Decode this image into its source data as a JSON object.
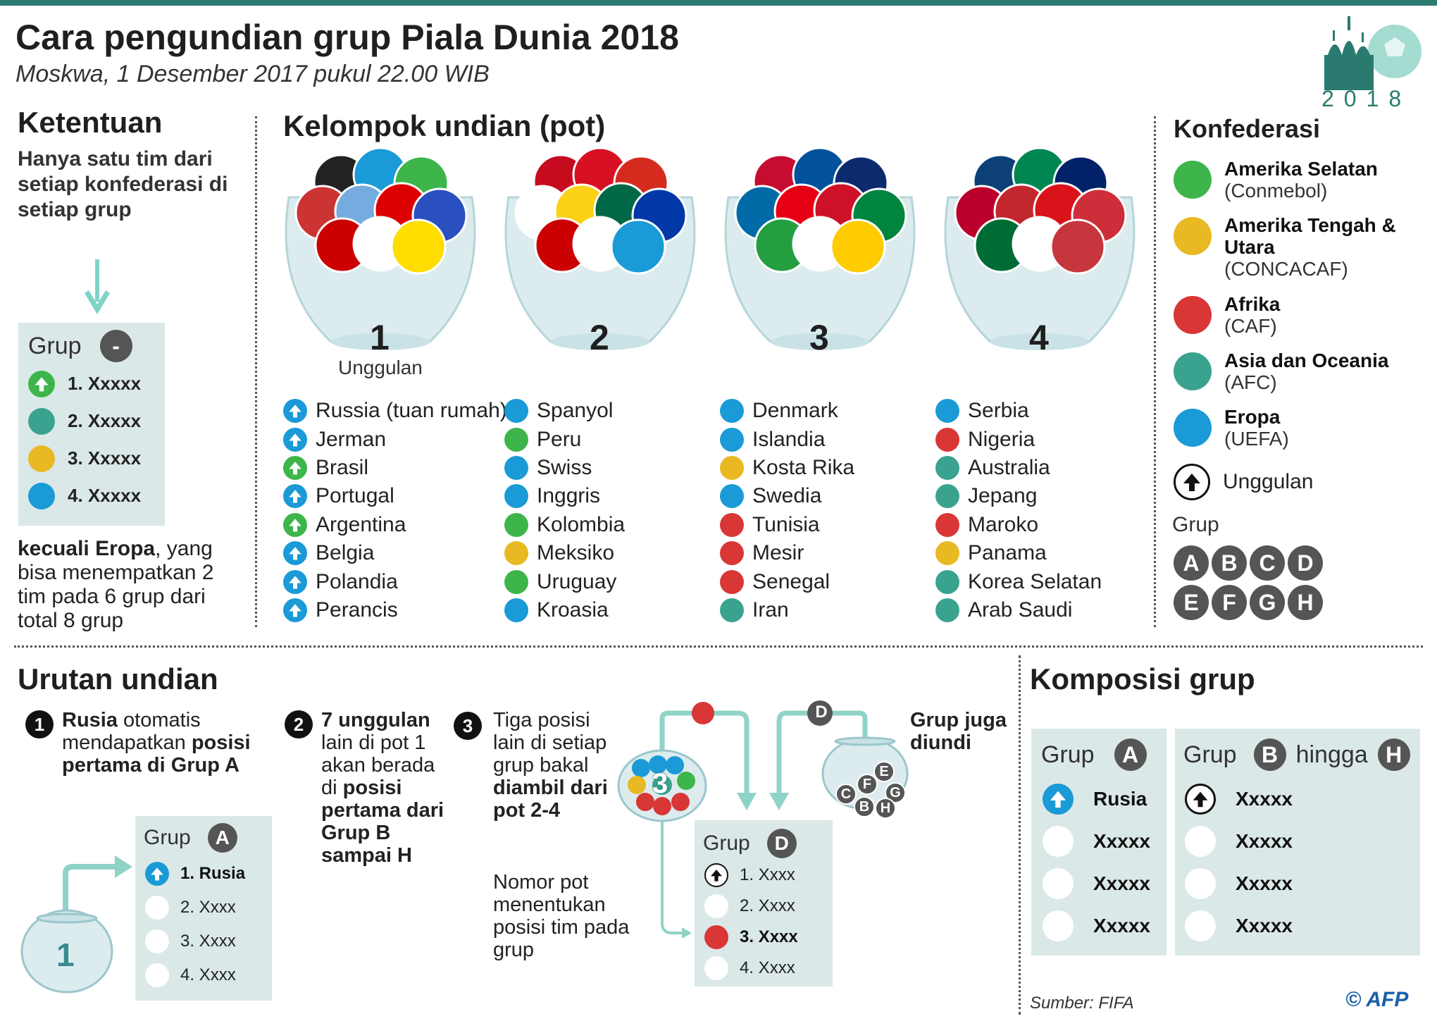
{
  "header": {
    "title": "Cara pengundian grup Piala Dunia 2018",
    "subtitle": "Moskwa, 1 Desember 2017 pukul 22.00 WIB",
    "logo_year": "2018"
  },
  "colors": {
    "south_america": "#3db54a",
    "concacaf": "#e8b923",
    "africa": "#d93636",
    "asia": "#3aa38f",
    "europe": "#1a9ad6",
    "accent": "#2a7a70",
    "panel": "#dbe8e8"
  },
  "ketentuan": {
    "title": "Ketentuan",
    "text": "Hanya satu tim dari setiap konfederasi di setiap grup",
    "group_label": "Grup",
    "group_letter": "-",
    "items": [
      "1. Xxxxx",
      "2. Xxxxx",
      "3. Xxxxx",
      "4. Xxxxx"
    ],
    "except_bold": "kecuali Eropa",
    "except_rest": ", yang bisa menempatkan 2 tim pada 6 grup dari total 8 grup"
  },
  "pots": {
    "title": "Kelompok undian (pot)",
    "seed_label": "Unggulan",
    "list": [
      {
        "number": "1",
        "teams": [
          {
            "name": "Russia (tuan rumah)",
            "conf": "europe",
            "seed": true
          },
          {
            "name": "Jerman",
            "conf": "europe",
            "seed": true
          },
          {
            "name": "Brasil",
            "conf": "south_america",
            "seed": true
          },
          {
            "name": "Portugal",
            "conf": "europe",
            "seed": true
          },
          {
            "name": "Argentina",
            "conf": "south_america",
            "seed": true
          },
          {
            "name": "Belgia",
            "conf": "europe",
            "seed": true
          },
          {
            "name": "Polandia",
            "conf": "europe",
            "seed": true
          },
          {
            "name": "Perancis",
            "conf": "europe",
            "seed": true
          }
        ]
      },
      {
        "number": "2",
        "teams": [
          {
            "name": "Spanyol",
            "conf": "europe"
          },
          {
            "name": "Peru",
            "conf": "south_america"
          },
          {
            "name": "Swiss",
            "conf": "europe"
          },
          {
            "name": "Inggris",
            "conf": "europe"
          },
          {
            "name": "Kolombia",
            "conf": "south_america"
          },
          {
            "name": "Meksiko",
            "conf": "concacaf"
          },
          {
            "name": "Uruguay",
            "conf": "south_america"
          },
          {
            "name": "Kroasia",
            "conf": "europe"
          }
        ]
      },
      {
        "number": "3",
        "teams": [
          {
            "name": "Denmark",
            "conf": "europe"
          },
          {
            "name": "Islandia",
            "conf": "europe"
          },
          {
            "name": "Kosta Rika",
            "conf": "concacaf"
          },
          {
            "name": "Swedia",
            "conf": "europe"
          },
          {
            "name": "Tunisia",
            "conf": "africa"
          },
          {
            "name": "Mesir",
            "conf": "africa"
          },
          {
            "name": "Senegal",
            "conf": "africa"
          },
          {
            "name": "Iran",
            "conf": "asia"
          }
        ]
      },
      {
        "number": "4",
        "teams": [
          {
            "name": "Serbia",
            "conf": "europe"
          },
          {
            "name": "Nigeria",
            "conf": "africa"
          },
          {
            "name": "Australia",
            "conf": "asia"
          },
          {
            "name": "Jepang",
            "conf": "asia"
          },
          {
            "name": "Maroko",
            "conf": "africa"
          },
          {
            "name": "Panama",
            "conf": "concacaf"
          },
          {
            "name": "Korea Selatan",
            "conf": "asia"
          },
          {
            "name": "Arab Saudi",
            "conf": "asia"
          }
        ]
      }
    ]
  },
  "konfederasi": {
    "title": "Konfederasi",
    "items": [
      {
        "name": "Amerika Selatan",
        "sub": "(Conmebol)",
        "conf": "south_america"
      },
      {
        "name": "Amerika Tengah & Utara",
        "sub": "(CONCACAF)",
        "conf": "concacaf"
      },
      {
        "name": "Afrika",
        "sub": "(CAF)",
        "conf": "africa"
      },
      {
        "name": "Asia dan Oceania",
        "sub": "(AFC)",
        "conf": "asia"
      },
      {
        "name": "Eropa",
        "sub": "(UEFA)",
        "conf": "europe"
      }
    ],
    "seed_label": "Unggulan",
    "group_label": "Grup",
    "groups": [
      "A",
      "B",
      "C",
      "D",
      "E",
      "F",
      "G",
      "H"
    ]
  },
  "urutan": {
    "title": "Urutan undian",
    "step1": {
      "num": "1",
      "bold1": "Rusia",
      "rest1": " otomatis mendapatkan ",
      "bold2": "posisi pertama di Grup A"
    },
    "step2": {
      "num": "2",
      "bold1": "7 unggulan",
      "rest1": " lain di pot 1 akan berada di ",
      "bold2": "posisi pertama dari Grup B sampai H"
    },
    "step3": {
      "num": "3",
      "rest1": "Tiga posisi lain di setiap grup bakal ",
      "bold1": "diambil dari pot 2-4"
    },
    "note": "Nomor pot menentukan posisi tim pada grup",
    "also_drawn": "Grup juga diundi",
    "ex_a": {
      "label": "Grup",
      "letter": "A",
      "items": [
        "1. Rusia",
        "2. Xxxx",
        "3. Xxxx",
        "4. Xxxx"
      ],
      "bowl_number": "1"
    },
    "ex_d": {
      "label": "Grup",
      "letter": "D",
      "items": [
        "1. Xxxx",
        "2. Xxxx",
        "3. Xxxx",
        "4. Xxxx"
      ],
      "bowl_number": "3",
      "ball_letter": "D",
      "group_balls": [
        "E",
        "F",
        "C",
        "G",
        "B",
        "H"
      ]
    }
  },
  "komposisi": {
    "title": "Komposisi grup",
    "a": {
      "label": "Grup",
      "letter": "A",
      "items": [
        "Rusia",
        "Xxxxx",
        "Xxxxx",
        "Xxxxx"
      ]
    },
    "bh": {
      "label": "Grup",
      "letter1": "B",
      "mid": "hingga",
      "letter2": "H",
      "items": [
        "Xxxxx",
        "Xxxxx",
        "Xxxxx",
        "Xxxxx"
      ]
    }
  },
  "footer": {
    "source": "Sumber: FIFA",
    "credit": "© AFP"
  }
}
